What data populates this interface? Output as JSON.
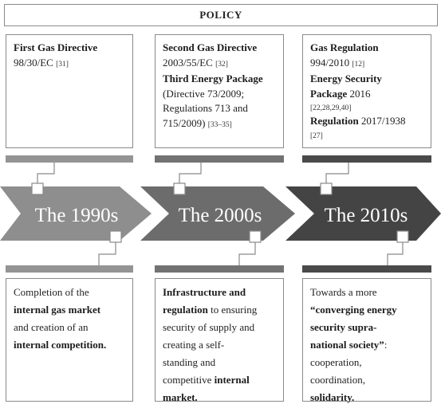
{
  "header": {
    "title": "POLICY"
  },
  "colors": {
    "era1": "#8e8e8e",
    "era2": "#6c6c6c",
    "era3": "#444444",
    "bar1": "#949494",
    "bar2": "#727272",
    "bar3": "#4a4a4a"
  },
  "policy": {
    "col1": {
      "l1_bold": "First Gas Directive",
      "l2": "98/30/EC",
      "l2_ref": "[31]"
    },
    "col2": {
      "l1_bold": "Second Gas Directive",
      "l2": "2003/55/EC",
      "l2_ref": "[32]",
      "l3_bold": "Third Energy Package",
      "l4": "(Directive 73/2009;",
      "l5": "Regulations 713 and",
      "l6": "715/2009)",
      "l6_ref": "[33–35]"
    },
    "col3": {
      "l1_bold": "Gas Regulation",
      "l2": "994/2010",
      "l2_ref": "[12]",
      "l3_bold": "Energy Security",
      "l4_bold": "Package",
      "l4": " 2016",
      "l5_ref": "[22,28,29,40]",
      "l6_bold": "Regulation",
      "l6": " 2017/1938",
      "l7_ref": "[27]"
    }
  },
  "eras": [
    "The 1990s",
    "The 2000s",
    "The 2010s"
  ],
  "outcomes": {
    "col1": {
      "l1": "Completion of the",
      "l2_bold": "internal gas market",
      "l3": "and creation of an",
      "l4_bold": "internal competition."
    },
    "col2": {
      "l1_bold": "Infrastructure and",
      "l2_bold": "regulation",
      "l2": " to ensuring",
      "l3": "security of supply and",
      "l4": "creating a self-",
      "l5": "standing and",
      "l6": "competitive ",
      "l6_bold": "internal",
      "l7_bold": "market."
    },
    "col3": {
      "l1": "Towards a more",
      "l2_bold": "“converging energy",
      "l3_bold": "security supra-",
      "l4_bold": "national society”",
      "l4": ":",
      "l5": "cooperation,",
      "l6": "coordination,",
      "l7_bold": "solidarity."
    }
  }
}
